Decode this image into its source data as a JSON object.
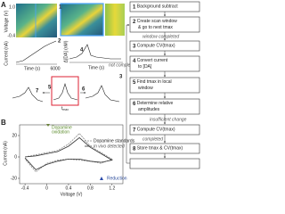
{
  "panel_a": {
    "label": "A",
    "voltage_axis": "Voltage (V)",
    "voltage_ticks": [
      "1.0",
      "-0.4"
    ],
    "current_axis": "Current (nA)",
    "time_axis": "Time (s)",
    "time_tick": "6000",
    "da_axis": "Δ[DA] (nM)",
    "step_labels": [
      "1",
      "2",
      "3",
      "4",
      "5",
      "6",
      "7"
    ],
    "tmax": {
      "base": "t",
      "sub": "max"
    }
  },
  "flowchart": {
    "steps": [
      {
        "num": "1",
        "text": "Background subtract"
      },
      {
        "num": "2",
        "lines": [
          "Create scan window",
          "& go to next tmax"
        ]
      },
      {
        "num": "3",
        "text": "Compute CV(tmax)"
      },
      {
        "num": "4",
        "lines": [
          "Convert current",
          "to [DA]"
        ]
      },
      {
        "num": "5",
        "lines": [
          "Find tmax in local",
          "window"
        ]
      },
      {
        "num": "6",
        "lines": [
          "Determine relative",
          "amplitudes"
        ]
      },
      {
        "num": "7",
        "text": "Compute CV(tmax)"
      },
      {
        "num": "8",
        "text": "Store tmax & CV(tmax)"
      }
    ],
    "edges": [
      "window completed",
      "not completed",
      "insufficient change",
      "completed"
    ]
  },
  "panel_b": {
    "label": "B",
    "x_label": "Voltage (V)",
    "y_label": "Current (nA)",
    "annotations": [
      "Dopamine",
      "oxidation",
      "Reduction"
    ],
    "xlim": [
      -0.5,
      1.4
    ],
    "ylim": [
      -25,
      30
    ],
    "xticks": [
      -0.4,
      0,
      0.4,
      0.8,
      1.2
    ],
    "yticks": [
      -20,
      0,
      20
    ],
    "x": [
      -0.4,
      -0.2,
      0,
      0.2,
      0.4,
      0.6,
      0.8,
      1.0,
      1.2,
      1.0,
      0.8,
      0.6,
      0.4,
      0.2,
      0,
      -0.2,
      -0.4
    ],
    "series": [
      {
        "name": "Dopamine standards",
        "color": "#888888",
        "dash": true,
        "values": [
          0,
          2,
          4,
          6,
          12,
          22,
          10,
          4,
          -2,
          -6,
          -4,
          -3,
          -2,
          -3,
          -6,
          -14,
          -2
        ]
      },
      {
        "name": "in vivo detected",
        "color": "#333333",
        "dash": false,
        "values": [
          0,
          1,
          3,
          5,
          10,
          18,
          9,
          3,
          -3,
          -5,
          -4,
          -2,
          -2,
          -4,
          -7,
          -12,
          -1
        ]
      }
    ]
  }
}
